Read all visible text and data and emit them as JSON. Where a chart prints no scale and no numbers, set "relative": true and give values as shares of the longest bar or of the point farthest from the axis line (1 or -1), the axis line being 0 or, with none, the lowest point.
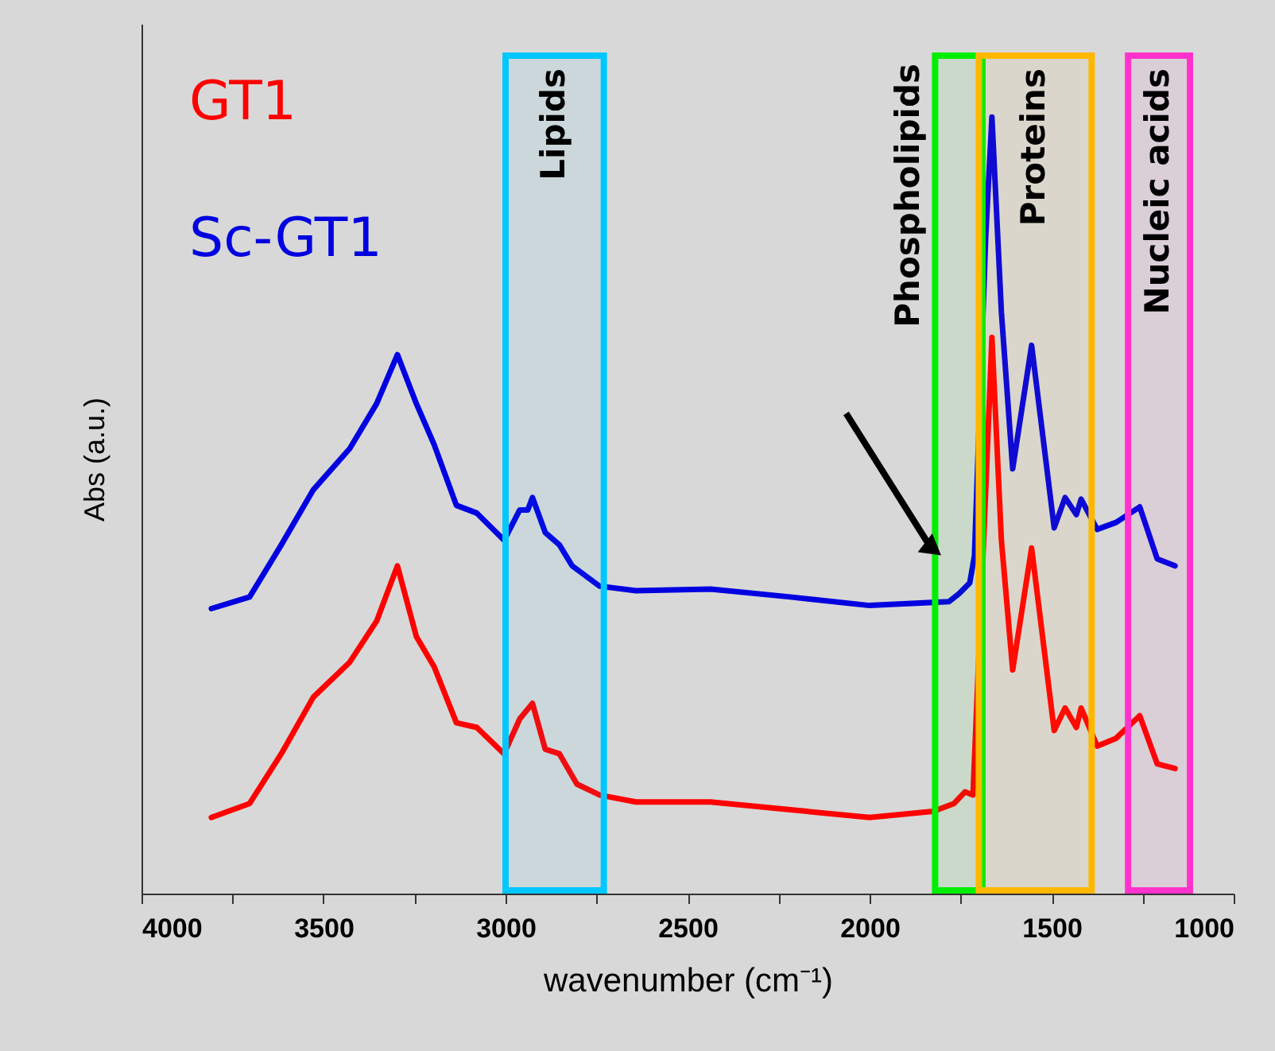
{
  "chart_data": {
    "type": "line",
    "relative": true,
    "xlabel": "wavenumber (cm⁻¹)",
    "ylabel": "Abs (a.u.)",
    "xlim": [
      4000,
      1000
    ],
    "xticks": [
      4000,
      {
        "value": 3750,
        "label": null
      },
      3500,
      {
        "value": 3250,
        "label": null
      },
      3000,
      {
        "value": 2750,
        "label": null
      },
      2500,
      {
        "value": 2250,
        "label": null
      },
      2000,
      {
        "value": 1750,
        "label": null
      },
      1500,
      {
        "value": 1250,
        "label": null
      },
      1000
    ],
    "legend": "top left",
    "marker": "none",
    "line_style": "solid",
    "series": [
      {
        "name": "GT1",
        "color": "#ff0000",
        "x": [
          3808,
          3703,
          3616,
          3528,
          3428,
          3354,
          3297,
          3245,
          3196,
          3135,
          3079,
          3004,
          2961,
          2926,
          2891,
          2852,
          2804,
          2742,
          2642,
          2437,
          2218,
          2000,
          1825,
          1768,
          1738,
          1716,
          1681,
          1664,
          1638,
          1607,
          1555,
          1493,
          1463,
          1432,
          1419,
          1375,
          1323,
          1258,
          1210,
          1161
        ],
        "values": [
          0.098,
          0.116,
          0.18,
          0.253,
          0.298,
          0.351,
          0.422,
          0.331,
          0.292,
          0.22,
          0.214,
          0.18,
          0.225,
          0.245,
          0.186,
          0.18,
          0.141,
          0.127,
          0.118,
          0.118,
          0.108,
          0.098,
          0.106,
          0.116,
          0.131,
          0.127,
          0.52,
          0.716,
          0.455,
          0.288,
          0.445,
          0.21,
          0.239,
          0.214,
          0.239,
          0.19,
          0.2,
          0.229,
          0.167,
          0.161
        ]
      },
      {
        "name": "Sc-GT1",
        "color": "#0000e0",
        "x": [
          3808,
          3703,
          3616,
          3528,
          3428,
          3354,
          3297,
          3245,
          3196,
          3135,
          3079,
          3004,
          2961,
          2939,
          2926,
          2891,
          2852,
          2817,
          2742,
          2642,
          2437,
          2218,
          2000,
          1782,
          1755,
          1725,
          1712,
          1681,
          1664,
          1638,
          1607,
          1555,
          1493,
          1463,
          1432,
          1419,
          1375,
          1323,
          1258,
          1210,
          1161
        ],
        "values": [
          0.367,
          0.382,
          0.449,
          0.52,
          0.573,
          0.631,
          0.694,
          0.631,
          0.578,
          0.5,
          0.49,
          0.455,
          0.494,
          0.494,
          0.51,
          0.465,
          0.449,
          0.422,
          0.396,
          0.39,
          0.392,
          0.382,
          0.371,
          0.376,
          0.386,
          0.4,
          0.435,
          0.847,
          1.0,
          0.749,
          0.547,
          0.706,
          0.471,
          0.51,
          0.488,
          0.508,
          0.469,
          0.478,
          0.498,
          0.431,
          0.422
        ]
      }
    ],
    "bands": [
      {
        "axis": "x",
        "from": 3000,
        "to": 2730,
        "label": "Lipids",
        "color": "#00c8ff"
      },
      {
        "axis": "x",
        "from": 1820,
        "to": 1690,
        "label": "Phospholipids",
        "color": "#00ee00"
      },
      {
        "axis": "x",
        "from": 1700,
        "to": 1390,
        "label": "Proteins",
        "color": "#ffb800"
      },
      {
        "axis": "x",
        "from": 1290,
        "to": 1120,
        "label": "Nucleic acids",
        "color": "#ff33cc"
      }
    ]
  }
}
